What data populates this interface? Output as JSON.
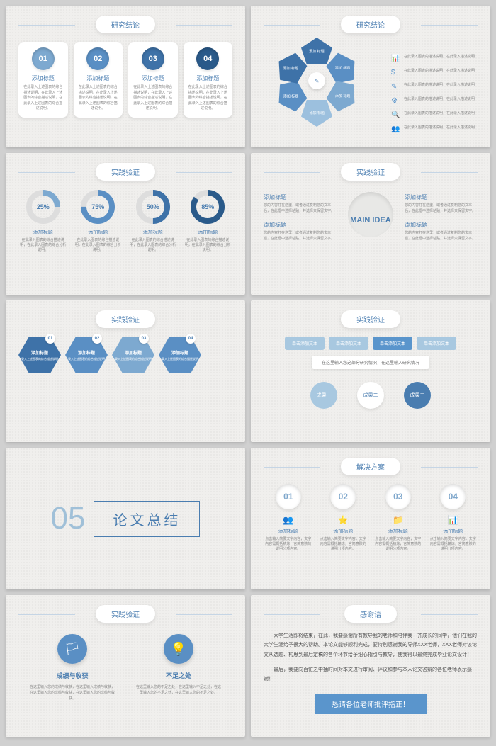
{
  "titles": {
    "research": "研究结论",
    "practice": "实践验证",
    "solution": "解决方案",
    "thanks": "感谢语"
  },
  "slide1": {
    "cards": [
      {
        "num": "01",
        "color": "#7da9d0",
        "title": "添加标题",
        "desc": "在此录入上述图表的综合描述说明，在此录入上述图表的综合描述说明，在此录入上述图表的综合描述说明。"
      },
      {
        "num": "02",
        "color": "#5a8fc4",
        "title": "添加标题",
        "desc": "在此录入上述图表的综合描述说明，在此录入上述图表的综合描述说明，在此录入上述图表的综合描述说明。"
      },
      {
        "num": "03",
        "color": "#3e72a8",
        "title": "添加标题",
        "desc": "在此录入上述图表的综合描述说明，在此录入上述图表的综合描述说明，在此录入上述图表的综合描述说明。"
      },
      {
        "num": "04",
        "color": "#2a5a8a",
        "title": "添加标题",
        "desc": "在此录入上述图表的综合描述说明，在此录入上述图表的综合描述说明，在此录入上述图表的综合描述说明。"
      }
    ]
  },
  "slide2": {
    "segments": [
      {
        "color": "#3e72a8",
        "label": "添加\n标题"
      },
      {
        "color": "#5a8fc4",
        "label": "添加\n标题"
      },
      {
        "color": "#7da9d0",
        "label": "添加\n标题"
      },
      {
        "color": "#9cc0de",
        "label": "添加\n标题"
      },
      {
        "color": "#5a8fc4",
        "label": "添加\n标题"
      },
      {
        "color": "#3e72a8",
        "label": "添加\n标题"
      }
    ],
    "icons": [
      "📊",
      "$",
      "✎",
      "⚙",
      "🔍",
      "👥"
    ],
    "item_text": "在此录入图表的描述说明，在此录入描述说明"
  },
  "slide3": {
    "donuts": [
      {
        "pct": 25,
        "color": "#7da9d0",
        "title": "添加标题",
        "desc": "在此录入图表的综合描述说明，在此录入图表的综合分析说明。"
      },
      {
        "pct": 75,
        "color": "#5a8fc4",
        "title": "添加标题",
        "desc": "在此录入图表的综合描述说明，在此录入图表的综合分析说明。"
      },
      {
        "pct": 50,
        "color": "#3e72a8",
        "title": "添加标题",
        "desc": "在此录入图表的综合描述说明，在此录入图表的综合分析说明。"
      },
      {
        "pct": 85,
        "color": "#2a5a8a",
        "title": "添加标题",
        "desc": "在此录入图表的综合描述说明，在此录入图表的综合分析说明。"
      }
    ]
  },
  "slide4": {
    "main": "MAIN IDEA",
    "items": [
      {
        "title": "添加标题",
        "desc": "您的内容打在这里，或者通过复制您的文本后，在此框中选择粘贴，并选择只保留文字。"
      },
      {
        "title": "添加标题",
        "desc": "您的内容打在这里，或者通过复制您的文本后，在此框中选择粘贴，并选择只保留文字。"
      },
      {
        "title": "添加标题",
        "desc": "您的内容打在这里，或者通过复制您的文本后，在此框中选择粘贴，并选择只保留文字。"
      },
      {
        "title": "添加标题",
        "desc": "您的内容打在这里，或者通过复制您的文本后，在此框中选择粘贴，并选择只保留文字。"
      }
    ]
  },
  "slide5": {
    "hexes": [
      {
        "num": "01",
        "color": "#3e72a8",
        "title": "添加标题",
        "desc": "录入上述图表的综合描述说明"
      },
      {
        "num": "02",
        "color": "#5a8fc4",
        "title": "添加标题",
        "desc": "录入上述图表的综合描述说明"
      },
      {
        "num": "03",
        "color": "#7da9d0",
        "title": "添加标题",
        "desc": "录入上述图表的综合描述说明"
      },
      {
        "num": "04",
        "color": "#5a8fc4",
        "title": "添加标题",
        "desc": "录入上述图表的综合描述说明"
      }
    ]
  },
  "slide6": {
    "tabs": [
      "单击添加文本",
      "单击添加文本",
      "单击添加文本",
      "单击添加文本"
    ],
    "mid": "在这里输入您这部分研究情况，在这里输入研究情况",
    "circles": [
      "成果一",
      "成果二",
      "成果三"
    ]
  },
  "slide7": {
    "num": "05",
    "title": "论文总结"
  },
  "slide8": {
    "steps": [
      {
        "num": "01",
        "icon": "👥",
        "title": "添加标题",
        "desc": "点击输入简要文字内容，文字内容需概括精炼，言简意赅的说明分项内容。"
      },
      {
        "num": "02",
        "icon": "⭐",
        "title": "添加标题",
        "desc": "点击输入简要文字内容，文字内容需概括精炼，言简意赅的说明分项内容。"
      },
      {
        "num": "03",
        "icon": "📁",
        "title": "添加标题",
        "desc": "点击输入简要文字内容，文字内容需概括精炼，言简意赅的说明分项内容。"
      },
      {
        "num": "04",
        "icon": "📊",
        "title": "添加标题",
        "desc": "点击输入简要文字内容，文字内容需概括精炼，言简意赅的说明分项内容。"
      }
    ]
  },
  "slide9": {
    "cols": [
      {
        "icon": "🏳",
        "title": "成绩与收获",
        "desc": "在这里输入您的成绩与收获，在这里输入成绩与收获，在这里输入您的成绩与收获，在这里输入您的成绩与收获。"
      },
      {
        "icon": "💡",
        "title": "不足之处",
        "desc": "在这里输入您的不足之处，在这里输入不足之处，在这里输入您的不足之处，在这里输入您的不足之处。"
      }
    ]
  },
  "slide10": {
    "p1": "大学生活即将结束，在此，我要感谢所有教导我的老师和陪伴我一齐成长的同学，他们在我的大学生涯给予很大的帮助。本论文能够顺利完成，要特别感谢我的导师XXX老师，XXX老师对该论文从选题、构思到最后定稿的各个环节给予细心指引与教导，使我得以最终完成毕业论文设计！",
    "p2": "最后，我要向百忙之中抽时间对本文进行审阅、评议和参与本人论文答辩的各位老师表示感谢！",
    "banner": "恳请各位老师批评指正！"
  }
}
